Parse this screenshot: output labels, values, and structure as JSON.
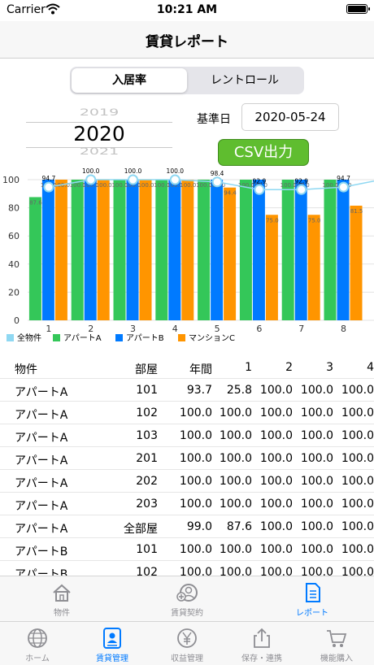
{
  "status_bar": {
    "carrier": "Carrier",
    "time": "10:21 AM"
  },
  "nav": {
    "title": "賃貸レポート"
  },
  "segmented": {
    "options": [
      "入居率",
      "レントロール"
    ],
    "selected_index": 0
  },
  "year_picker": {
    "previous": "2019",
    "current": "2020",
    "next": "2021"
  },
  "reference_date": {
    "label": "基準日",
    "value": "2020-05-24"
  },
  "csv_button": {
    "label": "CSV出力"
  },
  "colors": {
    "all_properties": "#8fd8f2",
    "apart_a": "#34c759",
    "apart_b": "#007aff",
    "mansion_c": "#ff9500",
    "csv_button": "#5fbd2f",
    "tab_active": "#007aff"
  },
  "chart_data": {
    "type": "bar",
    "categories": [
      "1",
      "2",
      "3",
      "4",
      "5",
      "6",
      "7",
      "8"
    ],
    "ylim": [
      0,
      100
    ],
    "yticks": [
      "0",
      "20",
      "40",
      "60",
      "80",
      "100"
    ],
    "grid": true,
    "legend_position": "bottom-left",
    "series": [
      {
        "name": "全物件",
        "type": "line",
        "values": [
          94.7,
          100.0,
          100.0,
          100.0,
          98.4,
          92.9,
          92.9,
          94.7
        ]
      },
      {
        "name": "アパートA",
        "type": "bar",
        "values": [
          87.6,
          100.0,
          100.0,
          100.0,
          100.0,
          100.0,
          100.0,
          100.0
        ]
      },
      {
        "name": "アパートB",
        "type": "bar",
        "values": [
          100.0,
          100.0,
          100.0,
          100.0,
          100.0,
          100.0,
          100.0,
          100.0
        ]
      },
      {
        "name": "マンションC",
        "type": "bar",
        "values": [
          100.0,
          100.0,
          100.0,
          100.0,
          94.4,
          75.0,
          75.0,
          81.5
        ]
      }
    ],
    "edge_labels": [
      "1000",
      "100"
    ]
  },
  "table": {
    "headers": [
      "物件",
      "部屋",
      "年間",
      "1",
      "2",
      "3",
      "4"
    ],
    "rows": [
      [
        "アパートA",
        "101",
        "93.7",
        "25.8",
        "100.0",
        "100.0",
        "100.0"
      ],
      [
        "アパートA",
        "102",
        "100.0",
        "100.0",
        "100.0",
        "100.0",
        "100.0"
      ],
      [
        "アパートA",
        "103",
        "100.0",
        "100.0",
        "100.0",
        "100.0",
        "100.0"
      ],
      [
        "アパートA",
        "201",
        "100.0",
        "100.0",
        "100.0",
        "100.0",
        "100.0"
      ],
      [
        "アパートA",
        "202",
        "100.0",
        "100.0",
        "100.0",
        "100.0",
        "100.0"
      ],
      [
        "アパートA",
        "203",
        "100.0",
        "100.0",
        "100.0",
        "100.0",
        "100.0"
      ],
      [
        "アパートA",
        "全部屋",
        "99.0",
        "87.6",
        "100.0",
        "100.0",
        "100.0"
      ],
      [
        "アパートB",
        "101",
        "100.0",
        "100.0",
        "100.0",
        "100.0",
        "100.0"
      ],
      [
        "アパートB",
        "102",
        "100.0",
        "100.0",
        "100.0",
        "100.0",
        "100.0"
      ]
    ]
  },
  "sub_tabs": {
    "items": [
      {
        "label": "物件",
        "icon": "house-icon"
      },
      {
        "label": "賃貸契約",
        "icon": "person-add-icon"
      },
      {
        "label": "レポート",
        "icon": "document-icon"
      }
    ],
    "active_index": 2
  },
  "main_tabs": {
    "items": [
      {
        "label": "ホーム",
        "icon": "globe-icon"
      },
      {
        "label": "賃貸管理",
        "icon": "id-card-icon"
      },
      {
        "label": "収益管理",
        "icon": "yen-icon"
      },
      {
        "label": "保存・連携",
        "icon": "share-icon"
      },
      {
        "label": "機能購入",
        "icon": "cart-icon"
      }
    ],
    "active_index": 1
  }
}
